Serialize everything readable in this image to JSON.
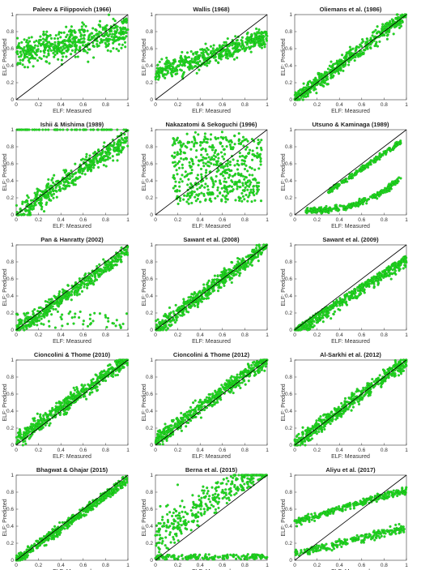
{
  "figure": {
    "xlabel": "ELF: Measured",
    "ylabel": "ELF: Predicted",
    "ticks": [
      "0",
      "0.2",
      "0.4",
      "0.6",
      "0.8",
      "1"
    ],
    "point_color": "#22dd22",
    "point_edge_color": "#119911",
    "reference_line_color": "#000000"
  },
  "chart_data": [
    {
      "type": "scatter",
      "title": "Paleev & Filippovich (1966)",
      "pattern": "band_high",
      "xlim": [
        0,
        1
      ],
      "ylim": [
        0,
        1
      ],
      "reference_line": "y=x"
    },
    {
      "type": "scatter",
      "title": "Wallis (1968)",
      "pattern": "band_mid_high",
      "xlim": [
        0,
        1
      ],
      "ylim": [
        0,
        1
      ],
      "reference_line": "y=x"
    },
    {
      "type": "scatter",
      "title": "Oliemans et al. (1986)",
      "pattern": "diagonal",
      "xlim": [
        0,
        1
      ],
      "ylim": [
        0,
        1
      ],
      "reference_line": "y=x"
    },
    {
      "type": "scatter",
      "title": "Ishii & Mishima (1989)",
      "pattern": "diagonal_saturated",
      "xlim": [
        0,
        1
      ],
      "ylim": [
        0,
        1
      ],
      "reference_line": "y=x"
    },
    {
      "type": "scatter",
      "title": "Nakazatomi & Sekoguchi (1996)",
      "pattern": "scattered_cloud",
      "xlim": [
        0,
        1
      ],
      "ylim": [
        0,
        1
      ],
      "reference_line": "y=x"
    },
    {
      "type": "scatter",
      "title": "Utsuno & Kaminaga (1989)",
      "pattern": "two_branches",
      "xlim": [
        0,
        1
      ],
      "ylim": [
        0,
        1
      ],
      "reference_line": "y=x"
    },
    {
      "type": "scatter",
      "title": "Pan & Hanratty (2002)",
      "pattern": "diagonal_with_low",
      "xlim": [
        0,
        1
      ],
      "ylim": [
        0,
        1
      ],
      "reference_line": "y=x"
    },
    {
      "type": "scatter",
      "title": "Sawant et al. (2008)",
      "pattern": "diagonal",
      "xlim": [
        0,
        1
      ],
      "ylim": [
        0,
        1
      ],
      "reference_line": "y=x"
    },
    {
      "type": "scatter",
      "title": "Sawant et al. (2009)",
      "pattern": "diagonal_under",
      "xlim": [
        0,
        1
      ],
      "ylim": [
        0,
        1
      ],
      "reference_line": "y=x"
    },
    {
      "type": "scatter",
      "title": "Cioncolini & Thome (2010)",
      "pattern": "diagonal_over",
      "xlim": [
        0,
        1
      ],
      "ylim": [
        0,
        1
      ],
      "reference_line": "y=x"
    },
    {
      "type": "scatter",
      "title": "Cioncolini & Thome (2012)",
      "pattern": "diagonal_over",
      "xlim": [
        0,
        1
      ],
      "ylim": [
        0,
        1
      ],
      "reference_line": "y=x"
    },
    {
      "type": "scatter",
      "title": "Al-Sarkhi et al. (2012)",
      "pattern": "diagonal",
      "xlim": [
        0,
        1
      ],
      "ylim": [
        0,
        1
      ],
      "reference_line": "y=x"
    },
    {
      "type": "scatter",
      "title": "Bhagwat & Ghajar (2015)",
      "pattern": "diagonal_tight",
      "xlim": [
        0,
        1
      ],
      "ylim": [
        0,
        1
      ],
      "reference_line": "y=x"
    },
    {
      "type": "scatter",
      "title": "Berna et al. (2015)",
      "pattern": "upper_triangle_low",
      "xlim": [
        0,
        1
      ],
      "ylim": [
        0,
        1
      ],
      "reference_line": "y=x"
    },
    {
      "type": "scatter",
      "title": "Aliyu et al. (2017)",
      "pattern": "two_bands",
      "xlim": [
        0,
        1
      ],
      "ylim": [
        0,
        1
      ],
      "reference_line": "y=x"
    }
  ]
}
